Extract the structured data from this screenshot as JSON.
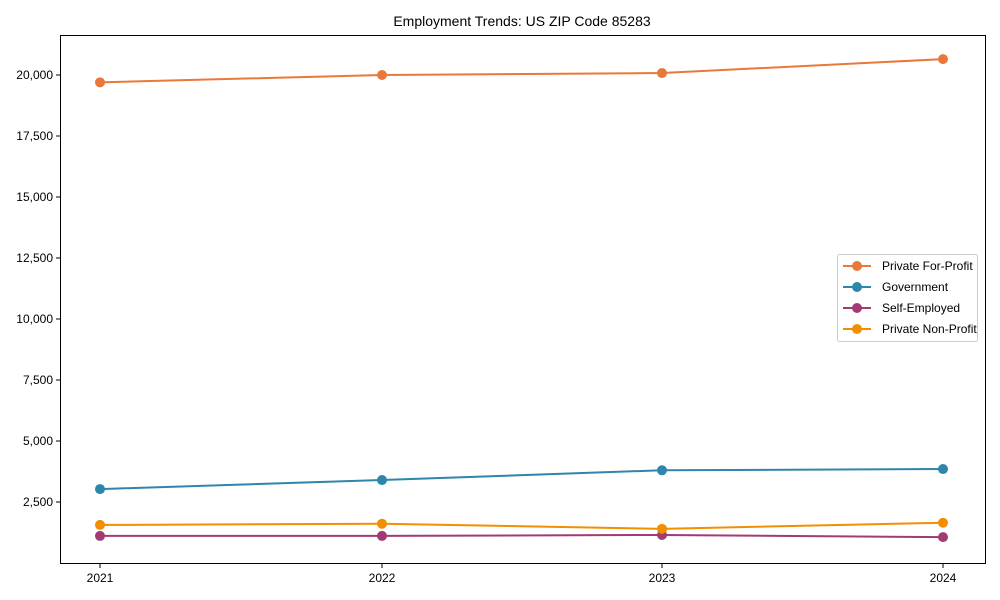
{
  "chart_data": {
    "type": "line",
    "title": "Employment Trends: US ZIP Code 85283",
    "xlabel": "",
    "ylabel": "",
    "x": [
      "2021",
      "2022",
      "2023",
      "2024"
    ],
    "yticks": [
      2500,
      5000,
      7500,
      10000,
      12500,
      15000,
      17500,
      20000
    ],
    "ytick_labels": [
      "2,500",
      "5,000",
      "7,500",
      "10,000",
      "12,500",
      "15,000",
      "17,500",
      "20,000"
    ],
    "ylim": [
      350,
      21700
    ],
    "grid": false,
    "legend_position": "center right",
    "series": [
      {
        "name": "Private For-Profit",
        "color": "#E8793A",
        "values": [
          19700,
          20000,
          20080,
          20650
        ]
      },
      {
        "name": "Government",
        "color": "#2E86AB",
        "values": [
          3030,
          3400,
          3800,
          3850
        ]
      },
      {
        "name": "Self-Employed",
        "color": "#A23B72",
        "values": [
          1110,
          1110,
          1150,
          1060
        ]
      },
      {
        "name": "Private Non-Profit",
        "color": "#F18F01",
        "values": [
          1560,
          1610,
          1400,
          1650
        ]
      }
    ]
  }
}
